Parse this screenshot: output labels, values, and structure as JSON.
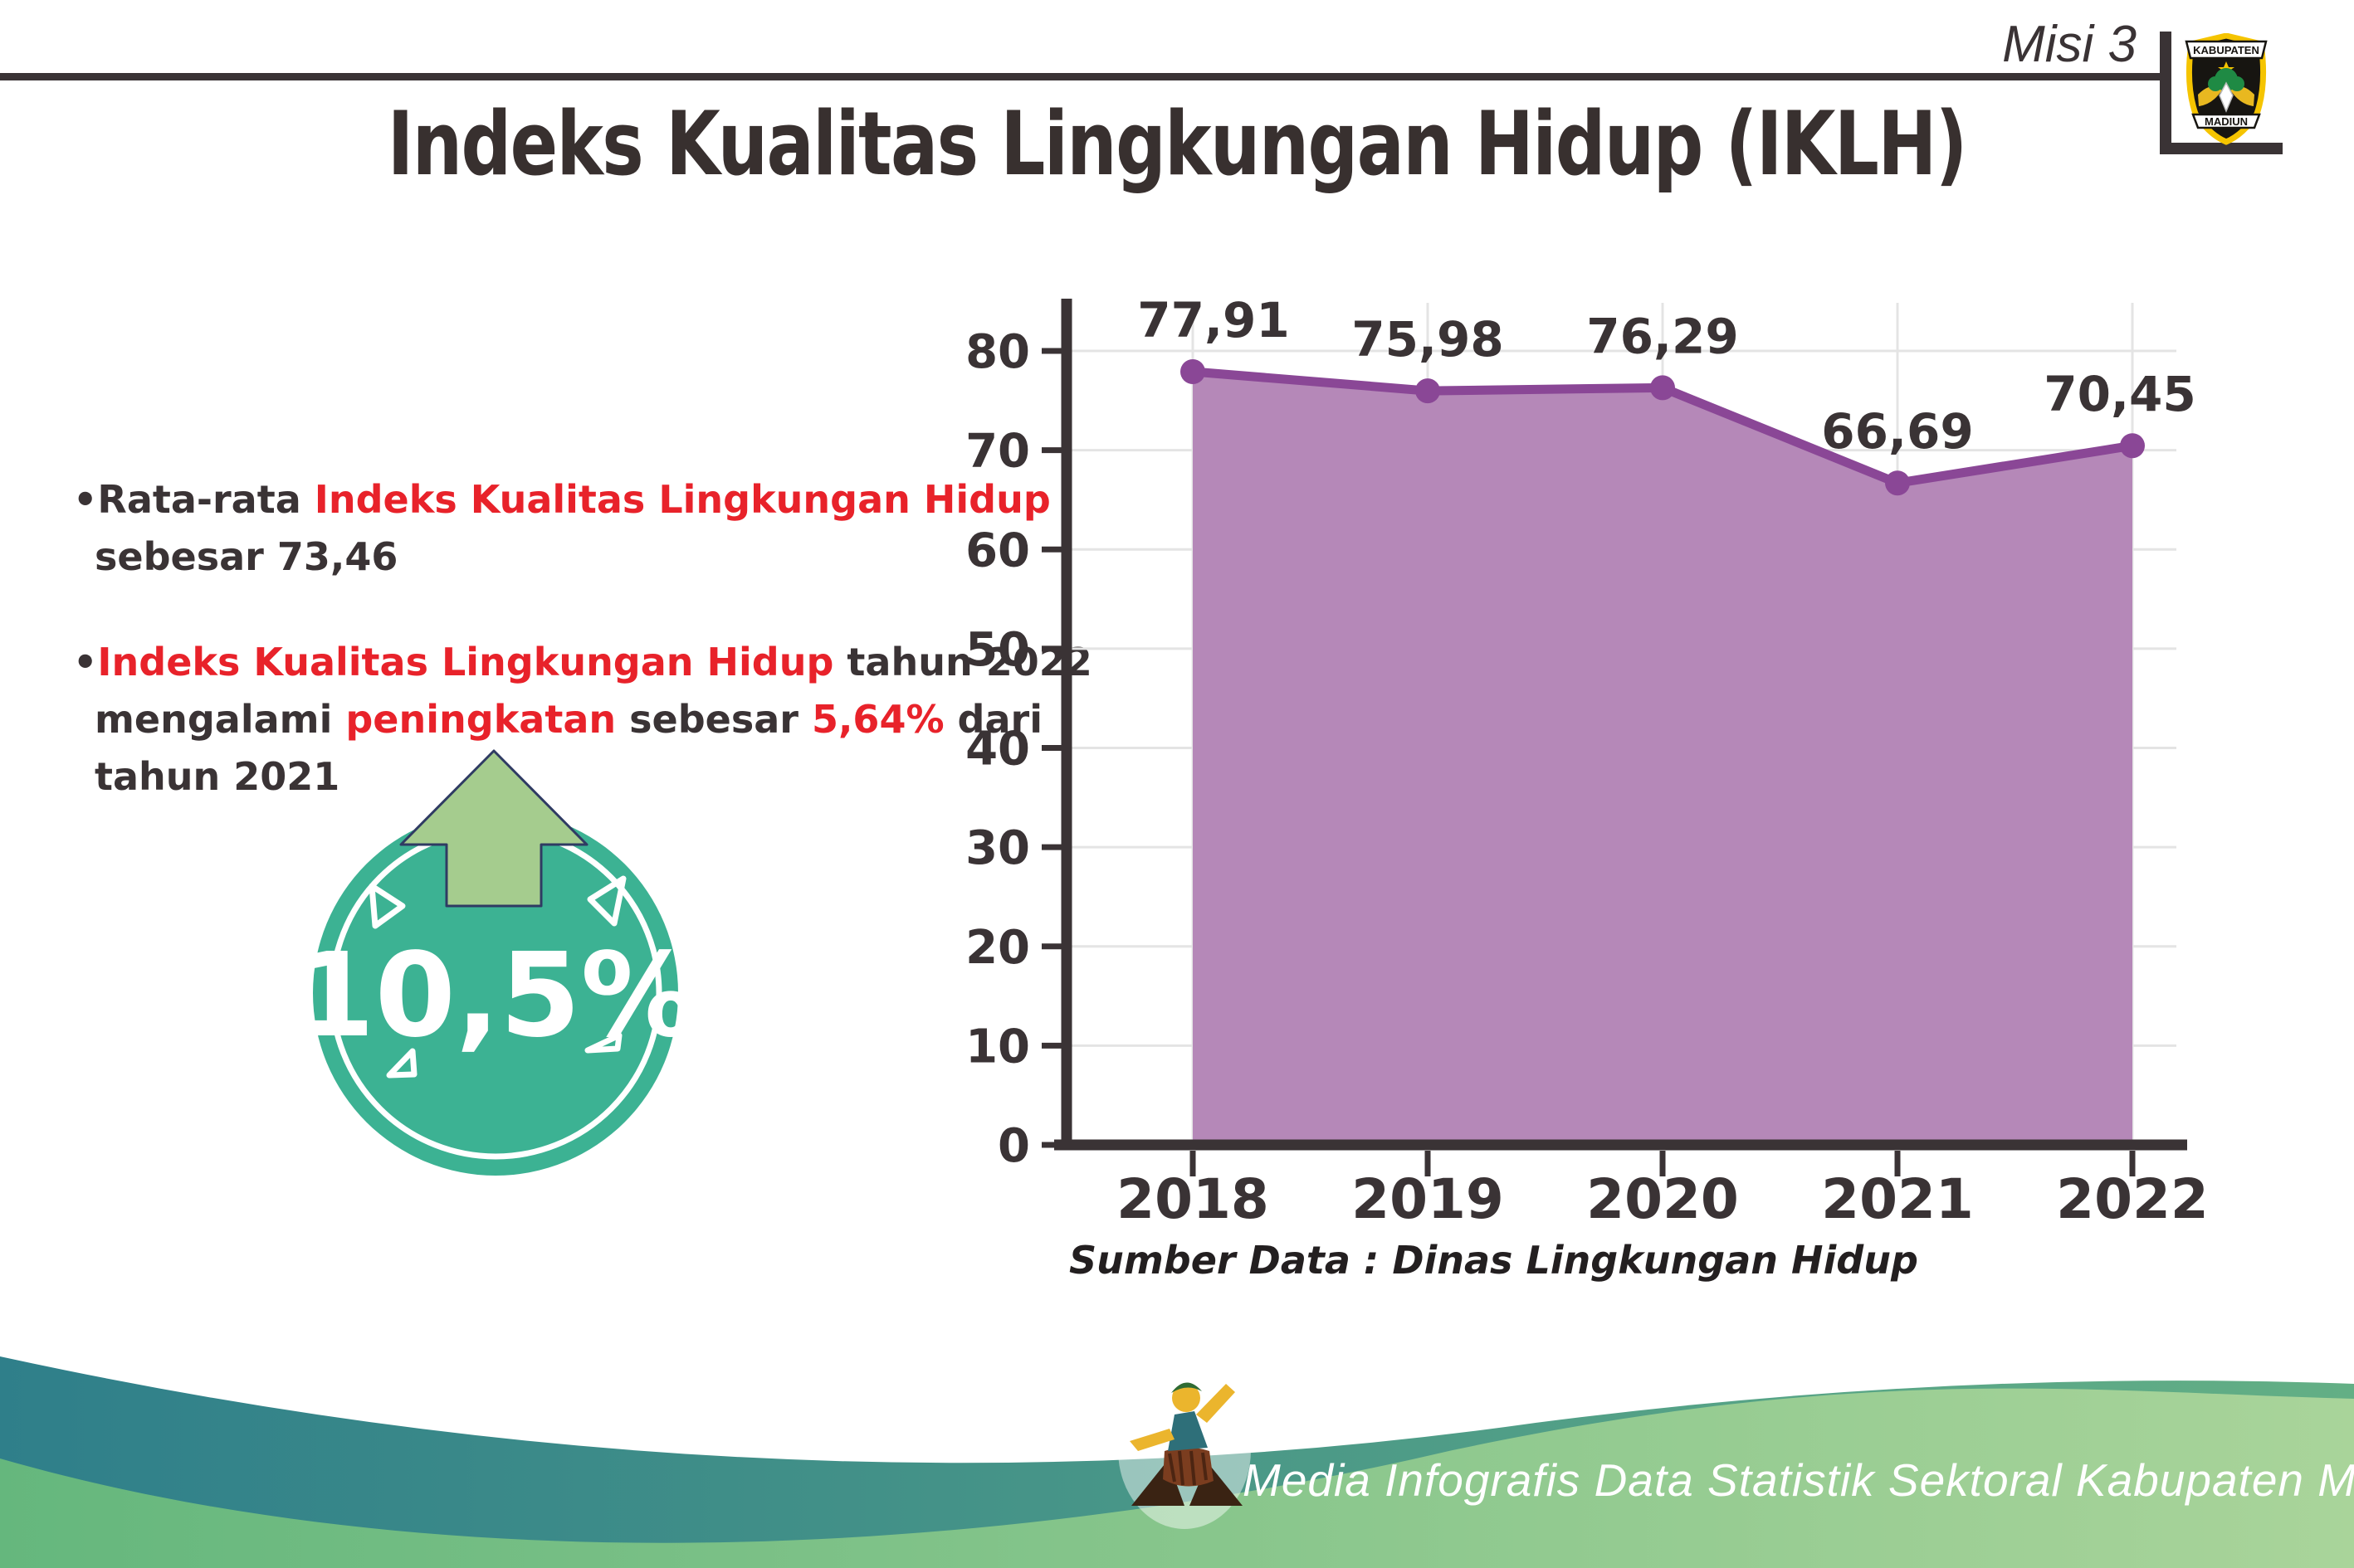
{
  "header": {
    "misi_label": "Misi 3",
    "logo": {
      "top_text": "KABUPATEN",
      "bottom_text": "MADIUN"
    }
  },
  "title": "Indeks Kualitas Lingkungan Hidup (IKLH)",
  "bullets": [
    {
      "lines": [
        [
          {
            "t": "•Rata-rata ",
            "c": "dark"
          },
          {
            "t": "Indeks Kualitas Lingkungan Hidup",
            "c": "red"
          }
        ],
        [
          {
            "t": "sebesar 73,46",
            "c": "dark"
          }
        ]
      ]
    },
    {
      "lines": [
        [
          {
            "t": "•",
            "c": "dark"
          },
          {
            "t": "Indeks Kualitas Lingkungan Hidup",
            "c": "red"
          },
          {
            "t": " tahun 2022",
            "c": "dark"
          }
        ],
        [
          {
            "t": "mengalami ",
            "c": "dark"
          },
          {
            "t": "peningkatan",
            "c": "red"
          },
          {
            "t": " sebesar ",
            "c": "dark"
          },
          {
            "t": "5,64%",
            "c": "red"
          },
          {
            "t": " dari",
            "c": "dark"
          }
        ],
        [
          {
            "t": "tahun 2021",
            "c": "dark"
          }
        ]
      ]
    }
  ],
  "badge": {
    "value": "10,5%",
    "circle_color": "#3CB293",
    "arrow_color": "#A5CC8E"
  },
  "chart_data": {
    "type": "area",
    "categories": [
      "2018",
      "2019",
      "2020",
      "2021",
      "2022"
    ],
    "values": [
      77.91,
      75.98,
      76.29,
      66.69,
      70.45
    ],
    "value_labels": [
      "77,91",
      "75,98",
      "76,29",
      "66,69",
      "70,45"
    ],
    "title": "",
    "xlabel": "",
    "ylabel": "",
    "ylim": [
      0,
      80
    ],
    "ytick_step": 10,
    "grid": true,
    "legend": false,
    "colors": {
      "area": "#B588B8",
      "line": "#8A4796",
      "point": "#8A4796",
      "label": "#3A3335",
      "axis": "#3A3335",
      "grid": "#E4E4E4"
    }
  },
  "source_note": "Sumber Data : Dinas Lingkungan Hidup",
  "footer": {
    "caption": "Media Infografis Data Statistik Sektoral Kabupaten Madiun |"
  }
}
